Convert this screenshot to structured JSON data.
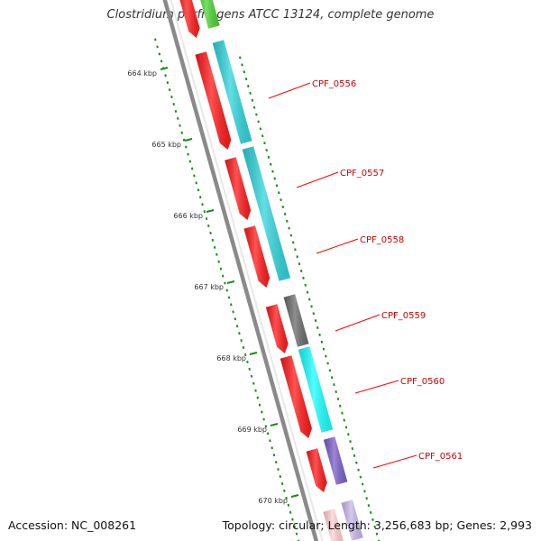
{
  "title": "Clostridium perfringens ATCC 13124, complete genome",
  "accession_text": "Accession: NC_008261",
  "summary_text": "Topology: circular; Length: 3,256,683 bp; Genes: 2,993",
  "colors": {
    "backbone": "#8a8a8a",
    "reverse_strand": "#ff1a1a",
    "cog_cyan": "#2fd5dc",
    "cog_bright_cyan": "#19ffff",
    "cog_gray": "#6b6b6b",
    "cog_purple": "#7a5ec9",
    "cog_green": "#4ad433",
    "cog_lavender": "#c8b8e8",
    "cog_pink": "#ffd0d0",
    "tick": "#1a8a1a",
    "label_line": "#ff0000",
    "label_text": "#cc0000"
  },
  "ticks": [
    {
      "label": "664 kbp"
    },
    {
      "label": "665 kbp"
    },
    {
      "label": "666 kbp"
    },
    {
      "label": "667 kbp"
    },
    {
      "label": "668 kbp"
    },
    {
      "label": "669 kbp"
    },
    {
      "label": "670 kbp"
    }
  ],
  "gene_labels": [
    {
      "name": "CPF_0556"
    },
    {
      "name": "CPF_0557"
    },
    {
      "name": "CPF_0558"
    },
    {
      "name": "CPF_0559"
    },
    {
      "name": "CPF_0560"
    },
    {
      "name": "CPF_0561"
    }
  ]
}
